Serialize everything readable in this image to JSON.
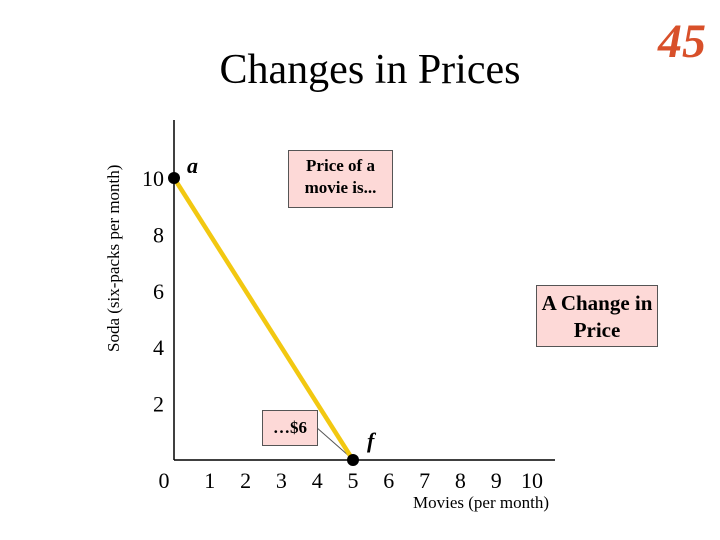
{
  "slide": {
    "title": "Changes in Prices",
    "number": "45"
  },
  "callouts": {
    "price_intro": "Price of a movie is...",
    "change": "A Change in Price",
    "price_value": "…$6"
  },
  "chart_data": {
    "type": "line",
    "xlabel": "Movies (per month)",
    "ylabel": "Soda (six-packs per month)",
    "xlim": [
      0,
      10
    ],
    "ylim": [
      0,
      10
    ],
    "x_ticks": [
      "0",
      "1",
      "2",
      "3",
      "4",
      "5",
      "6",
      "7",
      "8",
      "9",
      "10"
    ],
    "y_ticks": [
      "2",
      "4",
      "6",
      "8",
      "10"
    ],
    "series": [
      {
        "x": [
          0,
          5
        ],
        "y": [
          10,
          0
        ],
        "color": "#f2c811"
      }
    ],
    "points": [
      {
        "label": "a",
        "x": 0,
        "y": 10
      },
      {
        "label": "f",
        "x": 5,
        "y": 0
      }
    ],
    "axis_color": "#000000",
    "point_color": "#000000"
  }
}
